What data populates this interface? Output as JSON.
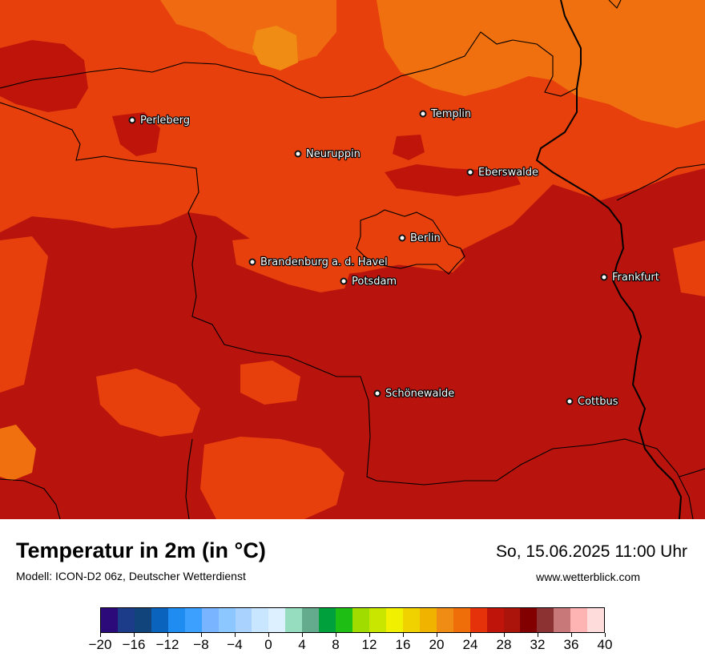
{
  "title": "Temperatur in 2m (in °C)",
  "subtitle": "Modell: ICON-D2 06z, Deutscher Wetterdienst",
  "datetime": "So, 15.06.2025 11:00 Uhr",
  "website": "www.wetterblick.com",
  "cities": [
    {
      "name": "Perleberg"
    },
    {
      "name": "Templin"
    },
    {
      "name": "Neuruppin"
    },
    {
      "name": "Eberswalde"
    },
    {
      "name": "Berlin"
    },
    {
      "name": "Brandenburg a. d. Havel"
    },
    {
      "name": "Potsdam"
    },
    {
      "name": "Frankfurt"
    },
    {
      "name": "Schönewalde"
    },
    {
      "name": "Cottbus"
    }
  ],
  "legend": {
    "colors": [
      "#2d0a7a",
      "#1c3c8a",
      "#12447c",
      "#0a64be",
      "#1e8cf0",
      "#3ca0ff",
      "#78b4ff",
      "#8cc8ff",
      "#aad2ff",
      "#c8e6ff",
      "#dcf0ff",
      "#96dcbe",
      "#64aa8c",
      "#00a03c",
      "#1ebe14",
      "#a0dc00",
      "#c8e600",
      "#f0f000",
      "#f0d200",
      "#f0b400",
      "#f08c14",
      "#f06e0a",
      "#e6320a",
      "#be140a",
      "#aa140a",
      "#820000",
      "#8c3232",
      "#c87878",
      "#ffb4b4",
      "#ffdcdc"
    ],
    "tick_labels": [
      "−20",
      "−16",
      "−12",
      "−8",
      "−4",
      "0",
      "4",
      "8",
      "12",
      "16",
      "20",
      "24",
      "28",
      "32",
      "36",
      "40"
    ]
  }
}
